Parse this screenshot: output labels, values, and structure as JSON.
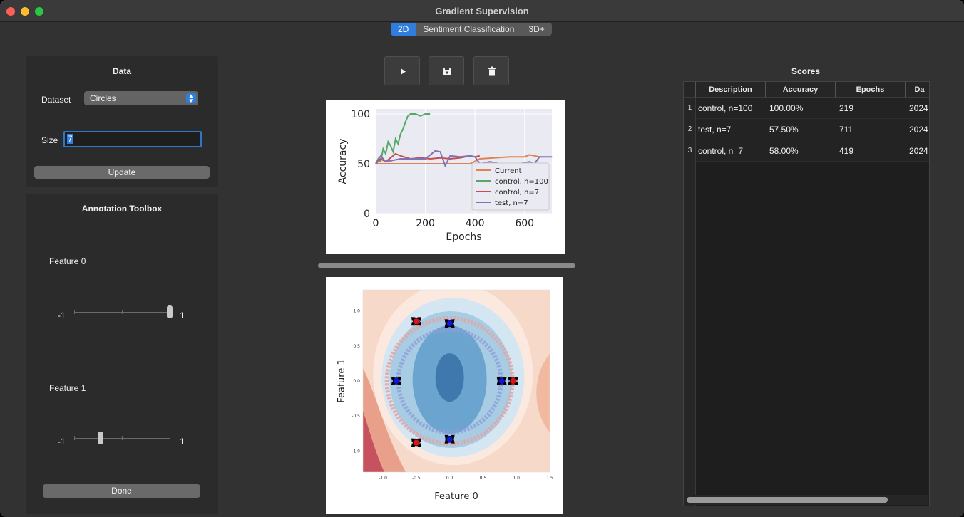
{
  "window": {
    "title": "Gradient Supervision"
  },
  "tabs": [
    {
      "label": "2D",
      "active": true
    },
    {
      "label": "Sentiment Classification",
      "active": false
    },
    {
      "label": "3D+",
      "active": false
    }
  ],
  "data_panel": {
    "title": "Data",
    "dataset_label": "Dataset",
    "dataset_value": "Circles",
    "size_label": "Size",
    "size_value": "7",
    "update_button": "Update"
  },
  "annotation_panel": {
    "title": "Annotation Toolbox",
    "feature0_label": "Feature 0",
    "feature0_min": "-1",
    "feature0_max": "1",
    "feature0_value": 1.0,
    "feature1_label": "Feature 1",
    "feature1_min": "-1",
    "feature1_max": "1",
    "feature1_value": -0.45,
    "done_button": "Done"
  },
  "toolbar": {
    "play_icon": "play-icon",
    "save_icon": "save-icon",
    "delete_icon": "trash-icon"
  },
  "scores": {
    "title": "Scores",
    "columns": [
      "Description",
      "Accuracy",
      "Epochs",
      "Da"
    ],
    "rows": [
      {
        "num": "1",
        "description": "control, n=100",
        "accuracy": "100.00%",
        "epochs": "219",
        "date": "2024"
      },
      {
        "num": "2",
        "description": "test, n=7",
        "accuracy": "57.50%",
        "epochs": "711",
        "date": "2024"
      },
      {
        "num": "3",
        "description": "control, n=7",
        "accuracy": "58.00%",
        "epochs": "419",
        "date": "2024"
      }
    ]
  },
  "chart_data": [
    {
      "type": "line",
      "xlabel": "Epochs",
      "ylabel": "Accuracy",
      "xlim": [
        0,
        710
      ],
      "ylim": [
        0,
        105
      ],
      "xticks": [
        "0",
        "200",
        "400",
        "600"
      ],
      "yticks": [
        "0",
        "50",
        "100"
      ],
      "grid": true,
      "legend_position": "bottom-right",
      "series": [
        {
          "name": "Current",
          "color": "#dd8452",
          "x": [
            0,
            100,
            200,
            300,
            350,
            380,
            420,
            480,
            540,
            600,
            620,
            660
          ],
          "y": [
            50,
            50,
            50,
            50,
            50,
            50,
            55,
            56,
            57,
            57,
            59,
            57
          ]
        },
        {
          "name": "control, n=100",
          "color": "#55a868",
          "x": [
            0,
            10,
            20,
            30,
            40,
            50,
            60,
            70,
            80,
            90,
            100,
            110,
            120,
            130,
            140,
            160,
            180,
            200,
            219
          ],
          "y": [
            50,
            55,
            52,
            65,
            60,
            72,
            68,
            62,
            75,
            70,
            80,
            85,
            92,
            98,
            100,
            100,
            98,
            100,
            100
          ]
        },
        {
          "name": "control, n=7",
          "color": "#c44e52",
          "x": [
            0,
            20,
            40,
            80,
            100,
            140,
            180,
            220,
            260,
            300,
            340,
            380,
            400,
            419
          ],
          "y": [
            50,
            55,
            52,
            60,
            58,
            55,
            56,
            55,
            56,
            55,
            56,
            58,
            57,
            58
          ]
        },
        {
          "name": "test, n=7",
          "color": "#8172b2",
          "x": [
            0,
            20,
            40,
            100,
            200,
            240,
            260,
            280,
            300,
            340,
            380,
            400,
            420,
            460,
            500,
            540,
            580,
            620,
            640,
            660,
            711
          ],
          "y": [
            50,
            58,
            52,
            55,
            55,
            63,
            62,
            48,
            58,
            57,
            58,
            57,
            50,
            52,
            50,
            50,
            50,
            52,
            50,
            57,
            57
          ]
        }
      ]
    },
    {
      "type": "heatmap",
      "xlabel": "Feature 0",
      "ylabel": "Feature 1",
      "xlim": [
        -1.3,
        1.5
      ],
      "ylim": [
        -1.3,
        1.3
      ],
      "xticks": [
        "-1.0",
        "-0.5",
        "0.0",
        "0.5",
        "1.0",
        "1.5"
      ],
      "yticks": [
        "1.0",
        "0.5",
        "0.0",
        "-0.5",
        "-1.0"
      ],
      "points": [
        {
          "x": -0.5,
          "y": 0.85,
          "class": "red"
        },
        {
          "x": 0.0,
          "y": 0.82,
          "class": "blue"
        },
        {
          "x": -0.8,
          "y": 0.0,
          "class": "blue"
        },
        {
          "x": 0.78,
          "y": 0.0,
          "class": "blue"
        },
        {
          "x": 0.95,
          "y": 0.0,
          "class": "red"
        },
        {
          "x": -0.5,
          "y": -0.88,
          "class": "red"
        },
        {
          "x": 0.0,
          "y": -0.83,
          "class": "blue"
        }
      ]
    }
  ]
}
